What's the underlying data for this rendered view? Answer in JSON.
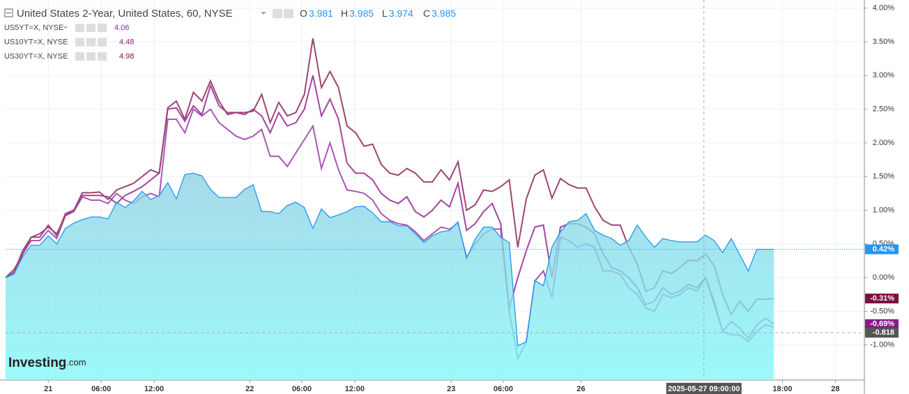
{
  "header": {
    "ohlc": [
      {
        "label": "O",
        "value": 3.981
      },
      {
        "label": "H",
        "value": 3.985
      },
      {
        "label": "L",
        "value": 3.974
      },
      {
        "label": "C",
        "value": 3.985
      }
    ]
  },
  "brand": {
    "name": "Investing",
    "suffix": ".com"
  },
  "chart_data": {
    "type": "line",
    "x": [
      0,
      1,
      2,
      3,
      4,
      5,
      6,
      7,
      8,
      9,
      10,
      11,
      12,
      13,
      14,
      15,
      16,
      17,
      18,
      19,
      20,
      21,
      22,
      23,
      24,
      25,
      26,
      27,
      28,
      29,
      30,
      31,
      32,
      33,
      34,
      35,
      36,
      37,
      38,
      39,
      40,
      41,
      42,
      43,
      44,
      45,
      46,
      47,
      48,
      49,
      50,
      51,
      52,
      53,
      54,
      55,
      56,
      57,
      58,
      59,
      60,
      61,
      62,
      63,
      64,
      65,
      66,
      67,
      68,
      69,
      70,
      71,
      72,
      73,
      74,
      75,
      76,
      77,
      78,
      79,
      80,
      81,
      82,
      83,
      84,
      85,
      86,
      87,
      88,
      89,
      90
    ],
    "series": [
      {
        "name": "United States 2-Year, United States, 60, NYSE",
        "kind": "area",
        "color": "#2196f3",
        "last_label": "0.42%",
        "values": [
          0,
          0.06,
          0.31,
          0.48,
          0.48,
          0.62,
          0.5,
          0.73,
          0.81,
          0.86,
          0.9,
          0.9,
          0.87,
          1.12,
          1.04,
          1.14,
          1.28,
          1.16,
          1.22,
          1.41,
          1.17,
          1.53,
          1.55,
          1.51,
          1.31,
          1.19,
          1.19,
          1.19,
          1.31,
          1.38,
          0.98,
          0.98,
          0.95,
          1.07,
          1.12,
          1.04,
          0.73,
          1.02,
          0.89,
          0.93,
          0.98,
          1.05,
          1.06,
          0.96,
          0.83,
          0.83,
          0.77,
          0.77,
          0.65,
          0.52,
          0.62,
          0.68,
          0.7,
          0.83,
          0.29,
          0.57,
          0.75,
          0.75,
          0.6,
          0.52,
          -1.01,
          -0.95,
          -0.04,
          -0.12,
          0.45,
          0.68,
          0.83,
          0.85,
          0.95,
          0.7,
          0.63,
          0.58,
          0.48,
          0.55,
          0.78,
          0.6,
          0.45,
          0.58,
          0.55,
          0.53,
          0.53,
          0.53,
          0.63,
          0.55,
          0.37,
          0.58,
          0.34,
          0.1,
          0.42,
          0.42,
          0.42
        ]
      },
      {
        "name": "US5YT=X, NYSE",
        "kind": "line",
        "color": "#a857b5",
        "legend_value": "4.06",
        "legend_color": "#8e24aa",
        "values": [
          0,
          0.05,
          0.35,
          0.55,
          0.55,
          0.7,
          0.58,
          0.92,
          0.98,
          1.2,
          1.15,
          1.15,
          1.1,
          1.25,
          1.15,
          1.1,
          1.2,
          1.25,
          1.2,
          2.35,
          2.35,
          2.15,
          2.5,
          2.4,
          2.5,
          2.3,
          2.2,
          2.1,
          2.05,
          2.1,
          2.2,
          1.8,
          1.8,
          1.65,
          1.85,
          2.05,
          2.25,
          1.62,
          2.0,
          1.6,
          1.3,
          1.28,
          1.25,
          1.15,
          0.95,
          0.85,
          0.8,
          0.78,
          0.68,
          0.55,
          0.65,
          0.75,
          0.72,
          0.8,
          0.3,
          0.5,
          0.65,
          0.72,
          0.72,
          -0.5,
          -1.2,
          -0.95,
          -0.05,
          0.1,
          -0.3,
          0.6,
          0.55,
          0.45,
          0.5,
          0.45,
          0.1,
          0.1,
          0.05,
          -0.15,
          -0.25,
          -0.45,
          -0.5,
          -0.25,
          -0.3,
          -0.25,
          -0.15,
          -0.2,
          0.0,
          -0.4,
          -0.8,
          -0.85,
          -0.85,
          -0.95,
          -0.8,
          -0.7,
          -0.73
        ]
      },
      {
        "name": "US10YT=X, NYSE",
        "kind": "line",
        "color": "#a3449f",
        "legend_value": "4.48",
        "legend_color": "#8e1e8e",
        "last_label": "-0.69%",
        "label_color": "#8b1a8b",
        "values": [
          0,
          0.08,
          0.4,
          0.6,
          0.6,
          0.78,
          0.62,
          0.95,
          1.0,
          1.22,
          1.22,
          1.22,
          1.2,
          1.1,
          1.22,
          1.28,
          1.35,
          1.45,
          1.55,
          2.5,
          2.52,
          2.32,
          2.55,
          2.42,
          2.85,
          2.55,
          2.45,
          2.45,
          2.42,
          2.5,
          2.4,
          2.15,
          2.45,
          2.25,
          2.3,
          2.5,
          3.0,
          2.4,
          2.65,
          2.35,
          1.7,
          1.55,
          1.55,
          1.45,
          1.25,
          1.15,
          1.1,
          1.2,
          0.98,
          0.9,
          1.0,
          1.15,
          1.05,
          1.4,
          0.7,
          0.8,
          0.98,
          1.1,
          0.8,
          -0.45,
          0.0,
          0.4,
          0.75,
          0.78,
          0.0,
          0.75,
          0.8,
          0.8,
          0.75,
          0.65,
          0.35,
          0.15,
          0.1,
          0.0,
          -0.15,
          -0.4,
          -0.35,
          -0.15,
          -0.25,
          -0.2,
          -0.1,
          -0.15,
          0.0,
          -0.35,
          -0.8,
          -0.65,
          -0.75,
          -0.9,
          -0.7,
          -0.6,
          -0.69
        ]
      },
      {
        "name": "US30YT=X, NYSE",
        "kind": "line",
        "color": "#9c4670",
        "legend_value": "4.98",
        "legend_color": "#7b1145",
        "last_label": "-0.31%",
        "label_color": "#7b0f3f",
        "values": [
          0,
          0.12,
          0.35,
          0.6,
          0.65,
          0.75,
          0.65,
          0.92,
          1.0,
          1.26,
          1.26,
          1.27,
          1.16,
          1.3,
          1.35,
          1.4,
          1.5,
          1.6,
          1.55,
          2.52,
          2.62,
          2.35,
          2.75,
          2.62,
          2.92,
          2.62,
          2.42,
          2.45,
          2.45,
          2.47,
          2.72,
          2.3,
          2.6,
          2.4,
          2.45,
          2.72,
          3.55,
          2.82,
          3.06,
          2.82,
          2.25,
          2.15,
          1.95,
          1.98,
          1.68,
          1.55,
          1.52,
          1.62,
          1.55,
          1.42,
          1.42,
          1.6,
          1.45,
          1.72,
          1.0,
          1.08,
          1.3,
          1.28,
          1.35,
          1.45,
          0.45,
          1.17,
          1.52,
          1.6,
          1.18,
          1.47,
          1.38,
          1.33,
          1.33,
          1.05,
          0.85,
          0.78,
          0.78,
          0.45,
          0.2,
          -0.2,
          -0.15,
          0.1,
          0.06,
          0.15,
          0.26,
          0.25,
          0.35,
          0.18,
          -0.25,
          -0.55,
          -0.35,
          -0.5,
          -0.32,
          -0.32,
          -0.31
        ]
      }
    ],
    "xlim": [
      0,
      100.6
    ],
    "xticks": [
      {
        "value": 5,
        "label": "21"
      },
      {
        "value": 11.2,
        "label": "06:00"
      },
      {
        "value": 17.4,
        "label": "12:00"
      },
      {
        "value": 28.6,
        "label": "22"
      },
      {
        "value": 34.7,
        "label": "06:00"
      },
      {
        "value": 40.9,
        "label": "12:00"
      },
      {
        "value": 52.2,
        "label": "23"
      },
      {
        "value": 58.3,
        "label": "06:00"
      },
      {
        "value": 67.4,
        "label": "26"
      },
      {
        "value": 91,
        "label": "18:00"
      },
      {
        "value": 97.2,
        "label": "28"
      }
    ],
    "ylim": [
      -1.52,
      4.12
    ],
    "yticks": [
      {
        "value": 4,
        "label": "4.00%"
      },
      {
        "value": 3.5,
        "label": "3.50%"
      },
      {
        "value": 3,
        "label": "3.00%"
      },
      {
        "value": 2.5,
        "label": "2.50%"
      },
      {
        "value": 2,
        "label": "2.00%"
      },
      {
        "value": 1.5,
        "label": "1.50%"
      },
      {
        "value": 1,
        "label": "1.00%"
      },
      {
        "value": 0.5,
        "label": "0.50%"
      },
      {
        "value": 0,
        "label": "0.00%"
      },
      {
        "value": -0.5,
        "label": "-0.50%"
      },
      {
        "value": -1,
        "label": "-1.00%"
      }
    ],
    "grid": true,
    "crosshair": {
      "x": 81.8,
      "x_label": "2025-05-27 09:00:00",
      "y": -0.818,
      "y_label": "-0.818"
    }
  }
}
